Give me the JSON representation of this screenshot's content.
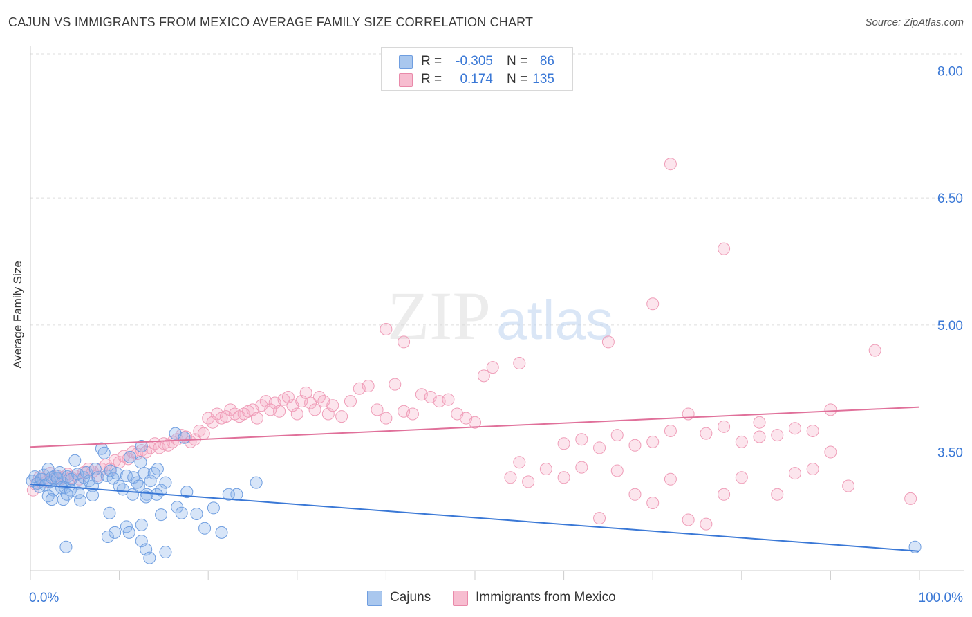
{
  "title": "CAJUN VS IMMIGRANTS FROM MEXICO AVERAGE FAMILY SIZE CORRELATION CHART",
  "source": "Source: ZipAtlas.com",
  "watermark": {
    "zip": "ZIP",
    "atlas": "atlas"
  },
  "legend_top": {
    "rows": [
      {
        "r_label": "R =",
        "r_value": "-0.305",
        "n_label": "N =",
        "n_value": "86",
        "color": "#a9c7ee",
        "border": "#6f9ee0"
      },
      {
        "r_label": "R =",
        "r_value": "0.174",
        "n_label": "N =",
        "n_value": "135",
        "color": "#f7bdd0",
        "border": "#e98aaa"
      }
    ]
  },
  "legend_bottom": {
    "cajuns": "Cajuns",
    "mexico": "Immigrants from Mexico"
  },
  "colors": {
    "blue": "#3a78d6",
    "pink": "#e0709a",
    "blue_fill": "rgba(140,180,235,0.35)",
    "pink_fill": "rgba(245,170,195,0.30)",
    "tick_text": "#3a78d6",
    "grid": "#dddddd"
  },
  "chart_data": {
    "type": "scatter",
    "xlabel": "",
    "ylabel": "Average Family Size",
    "x_tick_labels": [
      "0.0%",
      "100.0%"
    ],
    "y_tick_labels": [
      "3.50",
      "5.00",
      "6.50",
      "8.00"
    ],
    "xlim": [
      0,
      100
    ],
    "ylim": [
      2.1,
      8.2
    ],
    "y_ticks": [
      3.5,
      5.0,
      6.5,
      8.0
    ],
    "grid": true,
    "series": [
      {
        "name": "Cajuns",
        "trend": {
          "x0": 0,
          "y0": 3.12,
          "x1": 100,
          "y1": 2.33
        },
        "points": [
          [
            0.2,
            3.16
          ],
          [
            0.5,
            3.21
          ],
          [
            0.8,
            3.13
          ],
          [
            1.0,
            3.09
          ],
          [
            1.2,
            3.18
          ],
          [
            1.5,
            3.23
          ],
          [
            1.7,
            3.11
          ],
          [
            2.0,
            3.3
          ],
          [
            2.2,
            3.15
          ],
          [
            2.4,
            3.2
          ],
          [
            2.6,
            3.05
          ],
          [
            2.8,
            3.22
          ],
          [
            3.0,
            3.19
          ],
          [
            3.3,
            3.26
          ],
          [
            3.6,
            3.14
          ],
          [
            3.9,
            3.08
          ],
          [
            4.2,
            3.21
          ],
          [
            4.6,
            3.18
          ],
          [
            5.0,
            3.4
          ],
          [
            5.3,
            3.24
          ],
          [
            5.6,
            3.12
          ],
          [
            6.0,
            3.2
          ],
          [
            6.3,
            3.26
          ],
          [
            6.6,
            3.16
          ],
          [
            7.0,
            3.1
          ],
          [
            7.3,
            3.3
          ],
          [
            7.6,
            3.2
          ],
          [
            8.0,
            3.54
          ],
          [
            8.3,
            3.49
          ],
          [
            8.6,
            3.22
          ],
          [
            9.0,
            3.28
          ],
          [
            9.3,
            3.19
          ],
          [
            9.7,
            3.25
          ],
          [
            10.0,
            3.1
          ],
          [
            10.4,
            3.06
          ],
          [
            10.8,
            3.22
          ],
          [
            11.2,
            3.44
          ],
          [
            11.6,
            3.2
          ],
          [
            12.0,
            3.14
          ],
          [
            12.4,
            3.38
          ],
          [
            12.8,
            3.25
          ],
          [
            13.1,
            3.0
          ],
          [
            13.5,
            3.16
          ],
          [
            13.9,
            3.25
          ],
          [
            14.3,
            3.3
          ],
          [
            14.7,
            3.05
          ],
          [
            15.2,
            3.14
          ],
          [
            2.0,
            2.98
          ],
          [
            2.4,
            2.94
          ],
          [
            3.5,
            3.08
          ],
          [
            3.7,
            2.94
          ],
          [
            4.1,
            3.0
          ],
          [
            4.5,
            3.05
          ],
          [
            5.4,
            3.02
          ],
          [
            5.6,
            2.93
          ],
          [
            7.0,
            2.99
          ],
          [
            8.7,
            2.5
          ],
          [
            8.9,
            2.78
          ],
          [
            9.5,
            2.55
          ],
          [
            10.8,
            2.62
          ],
          [
            11.1,
            2.55
          ],
          [
            12.5,
            2.45
          ],
          [
            12.5,
            2.64
          ],
          [
            13.0,
            2.35
          ],
          [
            13.4,
            2.25
          ],
          [
            14.7,
            2.76
          ],
          [
            15.2,
            2.32
          ],
          [
            11.5,
            3.0
          ],
          [
            12.2,
            3.1
          ],
          [
            13.0,
            2.97
          ],
          [
            14.2,
            3.0
          ],
          [
            16.5,
            2.85
          ],
          [
            17.0,
            2.78
          ],
          [
            17.6,
            3.03
          ],
          [
            18.7,
            2.77
          ],
          [
            19.6,
            2.6
          ],
          [
            20.6,
            2.84
          ],
          [
            21.5,
            2.55
          ],
          [
            23.2,
            3.0
          ],
          [
            4.0,
            2.38
          ],
          [
            12.5,
            3.57
          ],
          [
            16.3,
            3.72
          ],
          [
            17.3,
            3.67
          ],
          [
            22.3,
            3.0
          ],
          [
            25.4,
            3.14
          ],
          [
            99.5,
            2.38
          ]
        ]
      },
      {
        "name": "Immigrants from Mexico",
        "trend": {
          "x0": 0,
          "y0": 3.56,
          "x1": 100,
          "y1": 4.03
        },
        "points": [
          [
            0.3,
            3.05
          ],
          [
            0.6,
            3.12
          ],
          [
            1.0,
            3.2
          ],
          [
            1.4,
            3.18
          ],
          [
            1.8,
            3.15
          ],
          [
            2.2,
            3.25
          ],
          [
            2.6,
            3.2
          ],
          [
            3.0,
            3.22
          ],
          [
            3.4,
            3.18
          ],
          [
            3.8,
            3.2
          ],
          [
            4.2,
            3.24
          ],
          [
            4.6,
            3.2
          ],
          [
            5.0,
            3.22
          ],
          [
            5.5,
            3.18
          ],
          [
            6.0,
            3.26
          ],
          [
            6.5,
            3.3
          ],
          [
            7.0,
            3.27
          ],
          [
            7.5,
            3.22
          ],
          [
            8.0,
            3.3
          ],
          [
            8.5,
            3.35
          ],
          [
            9.0,
            3.3
          ],
          [
            9.5,
            3.4
          ],
          [
            10.0,
            3.38
          ],
          [
            10.5,
            3.45
          ],
          [
            11.0,
            3.42
          ],
          [
            11.5,
            3.5
          ],
          [
            12.0,
            3.48
          ],
          [
            12.5,
            3.52
          ],
          [
            13.0,
            3.5
          ],
          [
            13.5,
            3.55
          ],
          [
            14.0,
            3.6
          ],
          [
            14.5,
            3.55
          ],
          [
            15.0,
            3.6
          ],
          [
            15.5,
            3.58
          ],
          [
            16.0,
            3.62
          ],
          [
            16.5,
            3.65
          ],
          [
            17.0,
            3.7
          ],
          [
            17.5,
            3.68
          ],
          [
            18.0,
            3.62
          ],
          [
            18.5,
            3.65
          ],
          [
            19.0,
            3.75
          ],
          [
            19.5,
            3.72
          ],
          [
            20.0,
            3.9
          ],
          [
            20.5,
            3.85
          ],
          [
            21.0,
            3.95
          ],
          [
            21.5,
            3.9
          ],
          [
            22.0,
            3.92
          ],
          [
            22.5,
            4.0
          ],
          [
            23.0,
            3.95
          ],
          [
            23.5,
            3.92
          ],
          [
            24.0,
            3.95
          ],
          [
            24.5,
            3.98
          ],
          [
            25.0,
            4.0
          ],
          [
            25.5,
            3.9
          ],
          [
            26.0,
            4.05
          ],
          [
            26.5,
            4.1
          ],
          [
            27.0,
            4.0
          ],
          [
            27.5,
            4.08
          ],
          [
            28.0,
            3.98
          ],
          [
            28.5,
            4.12
          ],
          [
            29.0,
            4.15
          ],
          [
            29.5,
            4.05
          ],
          [
            30.0,
            3.95
          ],
          [
            30.5,
            4.1
          ],
          [
            31.0,
            4.2
          ],
          [
            31.5,
            4.08
          ],
          [
            32.0,
            4.0
          ],
          [
            32.5,
            4.15
          ],
          [
            33.0,
            4.1
          ],
          [
            33.5,
            3.95
          ],
          [
            34.0,
            4.05
          ],
          [
            35.0,
            3.92
          ],
          [
            36.0,
            4.1
          ],
          [
            37.0,
            4.25
          ],
          [
            38.0,
            4.28
          ],
          [
            39.0,
            4.0
          ],
          [
            40.0,
            3.9
          ],
          [
            41.0,
            4.3
          ],
          [
            42.0,
            3.98
          ],
          [
            43.0,
            3.95
          ],
          [
            44.0,
            4.18
          ],
          [
            45.0,
            4.15
          ],
          [
            46.0,
            4.1
          ],
          [
            47.0,
            4.12
          ],
          [
            48.0,
            3.95
          ],
          [
            49.0,
            3.9
          ],
          [
            50.0,
            3.85
          ],
          [
            51.0,
            4.4
          ],
          [
            52.0,
            4.5
          ],
          [
            54.0,
            3.2
          ],
          [
            55.0,
            3.38
          ],
          [
            56.0,
            3.15
          ],
          [
            58.0,
            3.3
          ],
          [
            60.0,
            3.2
          ],
          [
            62.0,
            3.32
          ],
          [
            64.0,
            2.72
          ],
          [
            66.0,
            3.28
          ],
          [
            68.0,
            3.0
          ],
          [
            70.0,
            2.9
          ],
          [
            72.0,
            3.18
          ],
          [
            74.0,
            2.7
          ],
          [
            76.0,
            2.65
          ],
          [
            78.0,
            3.0
          ],
          [
            80.0,
            3.2
          ],
          [
            82.0,
            3.85
          ],
          [
            84.0,
            3.0
          ],
          [
            86.0,
            3.25
          ],
          [
            88.0,
            3.3
          ],
          [
            90.0,
            3.5
          ],
          [
            92.0,
            3.1
          ],
          [
            60.0,
            3.6
          ],
          [
            62.0,
            3.65
          ],
          [
            64.0,
            3.55
          ],
          [
            66.0,
            3.7
          ],
          [
            68.0,
            3.58
          ],
          [
            70.0,
            3.62
          ],
          [
            72.0,
            3.75
          ],
          [
            74.0,
            3.95
          ],
          [
            76.0,
            3.72
          ],
          [
            78.0,
            3.8
          ],
          [
            80.0,
            3.62
          ],
          [
            82.0,
            3.68
          ],
          [
            84.0,
            3.7
          ],
          [
            86.0,
            3.78
          ],
          [
            88.0,
            3.75
          ],
          [
            40.0,
            4.95
          ],
          [
            42.0,
            4.8
          ],
          [
            55.0,
            4.55
          ],
          [
            65.0,
            4.8
          ],
          [
            70.0,
            5.25
          ],
          [
            72.0,
            6.9
          ],
          [
            78.0,
            5.9
          ],
          [
            90.0,
            4.0
          ],
          [
            95.0,
            4.7
          ],
          [
            99.0,
            2.95
          ]
        ]
      }
    ]
  }
}
